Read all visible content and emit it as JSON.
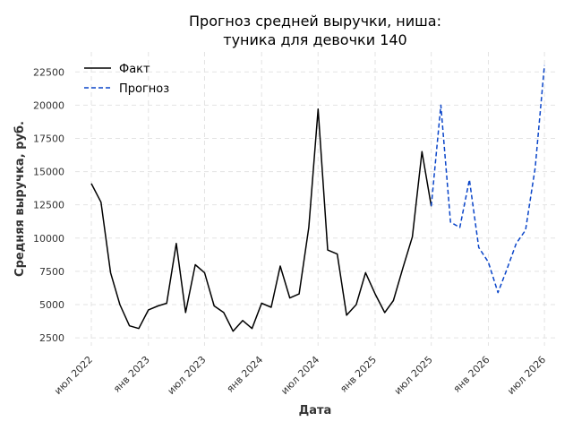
{
  "chart_data": {
    "type": "line",
    "title_line1": "Прогноз средней выручки, ниша:",
    "title_line2": "туника для девочки 140",
    "xlabel": "Дата",
    "ylabel": "Средняя выручка, руб.",
    "xlim": [
      "2022-05-10",
      "2026-08-10"
    ],
    "ylim": [
      1900,
      24000
    ],
    "yticks": [
      2500,
      5000,
      7500,
      10000,
      12500,
      15000,
      17500,
      20000,
      22500
    ],
    "xticks": [
      {
        "date": "2022-07-01",
        "label": "июл 2022"
      },
      {
        "date": "2023-01-01",
        "label": "янв 2023"
      },
      {
        "date": "2023-07-01",
        "label": "июл 2023"
      },
      {
        "date": "2024-01-01",
        "label": "янв 2024"
      },
      {
        "date": "2024-07-01",
        "label": "июл 2024"
      },
      {
        "date": "2025-01-01",
        "label": "янв 2025"
      },
      {
        "date": "2025-07-01",
        "label": "июл 2025"
      },
      {
        "date": "2026-01-01",
        "label": "янв 2026"
      },
      {
        "date": "2026-07-01",
        "label": "июл 2026"
      }
    ],
    "grid": true,
    "legend_position": "top-left",
    "series": [
      {
        "name": "Факт",
        "color": "#000000",
        "style": "solid",
        "x": [
          "2022-07-01",
          "2022-08-01",
          "2022-09-01",
          "2022-10-01",
          "2022-11-01",
          "2022-12-01",
          "2023-01-01",
          "2023-02-01",
          "2023-03-01",
          "2023-04-01",
          "2023-05-01",
          "2023-06-01",
          "2023-07-01",
          "2023-08-01",
          "2023-09-01",
          "2023-10-01",
          "2023-11-01",
          "2023-12-01",
          "2024-01-01",
          "2024-02-01",
          "2024-03-01",
          "2024-04-01",
          "2024-05-01",
          "2024-06-01",
          "2024-07-01",
          "2024-08-01",
          "2024-09-01",
          "2024-10-01",
          "2024-11-01",
          "2024-12-01",
          "2025-01-01",
          "2025-02-01",
          "2025-03-01",
          "2025-04-01",
          "2025-05-01",
          "2025-06-01",
          "2025-07-01"
        ],
        "values": [
          14100,
          12700,
          7400,
          5000,
          3400,
          3200,
          4600,
          4900,
          5100,
          9600,
          4400,
          8000,
          7400,
          4900,
          4400,
          3000,
          3800,
          3200,
          5100,
          4800,
          7900,
          5500,
          5800,
          10800,
          19700,
          9100,
          8800,
          4200,
          5000,
          7400,
          5800,
          4400,
          5300,
          7800,
          10100,
          16500,
          12400
        ]
      },
      {
        "name": "Прогноз",
        "color": "#0a45c9",
        "style": "dashed",
        "x": [
          "2025-07-01",
          "2025-08-01",
          "2025-09-01",
          "2025-10-01",
          "2025-11-01",
          "2025-12-01",
          "2026-01-01",
          "2026-02-01",
          "2026-03-01",
          "2026-04-01",
          "2026-05-01",
          "2026-06-01",
          "2026-07-01"
        ],
        "values": [
          12400,
          20000,
          11200,
          10800,
          14400,
          9300,
          8200,
          5900,
          7600,
          9600,
          10600,
          15300,
          23000
        ]
      }
    ]
  }
}
